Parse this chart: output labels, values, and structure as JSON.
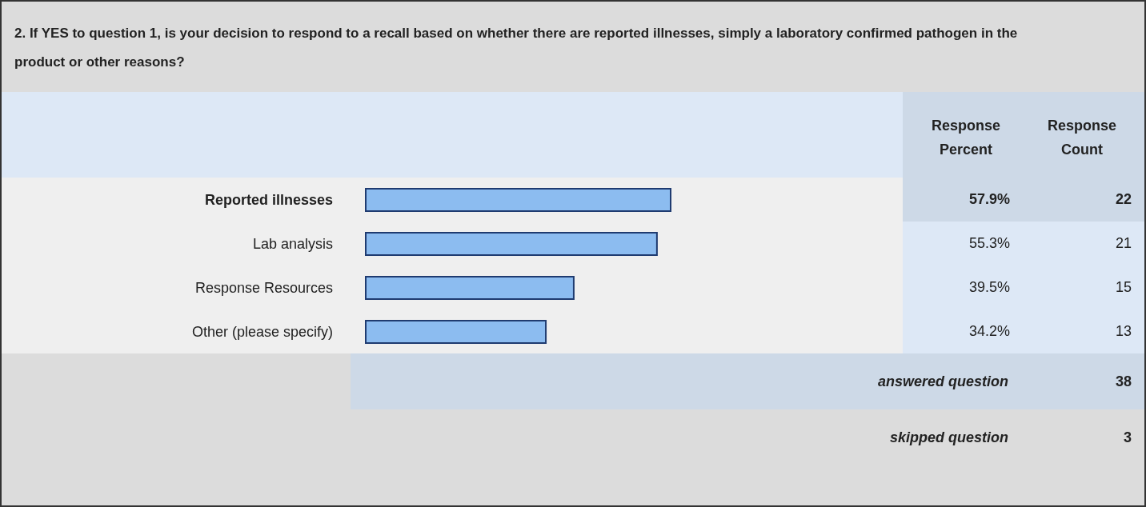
{
  "chart_data": {
    "type": "bar",
    "orientation": "horizontal",
    "title": "2. If YES to question 1, is your decision to respond to a recall based on whether there are reported illnesses, simply a laboratory confirmed pathogen in the product or other reasons?",
    "categories": [
      "Reported illnesses",
      "Lab analysis",
      "Response Resources",
      "Other (please specify)"
    ],
    "values": [
      57.9,
      55.3,
      39.5,
      34.2
    ],
    "value_labels": [
      "57.9%",
      "55.3%",
      "39.5%",
      "34.2%"
    ],
    "color": "#8cbcf0",
    "tick_labels": "y",
    "annotations": [
      "Response Percent",
      "Response Count",
      "22",
      "21",
      "15",
      "13",
      "answered question",
      "38",
      "skipped question",
      "3"
    ]
  }
}
